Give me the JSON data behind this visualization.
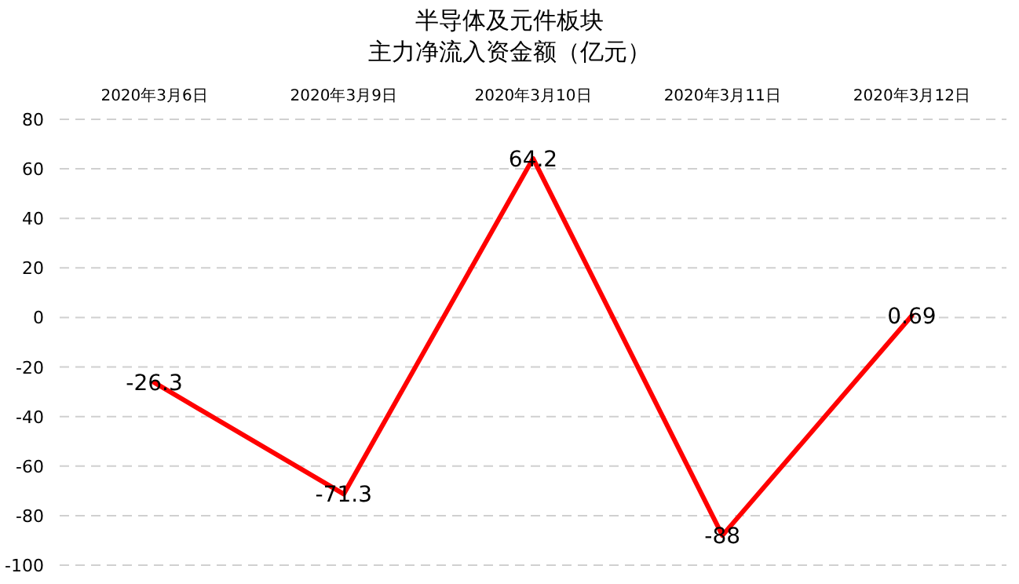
{
  "chart_data": {
    "type": "line",
    "title": "半导体及元件板块",
    "subtitle": "主力净流入资金额（亿元）",
    "categories": [
      "2020年3月6日",
      "2020年3月9日",
      "2020年3月10日",
      "2020年3月11日",
      "2020年3月12日"
    ],
    "series": [
      {
        "color": "#ff0000",
        "values": [
          -26.3,
          -71.3,
          64.2,
          -88,
          0.69
        ]
      }
    ],
    "ylim": [
      -100,
      80
    ],
    "yticks": [
      -100,
      -80,
      -60,
      -40,
      -20,
      0,
      20,
      40,
      60,
      80
    ],
    "grid": "y",
    "data_labels": true,
    "marker": "none",
    "line_style": "solid"
  }
}
